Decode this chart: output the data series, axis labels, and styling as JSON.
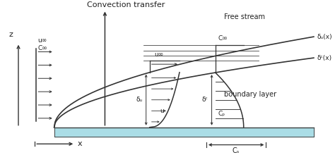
{
  "bg_color": "#ffffff",
  "plate_color": "#aadde6",
  "plate_edge_color": "#444444",
  "curve_color": "#333333",
  "arrow_color": "#333333",
  "text_color": "#222222",
  "title": "Convection transfer",
  "free_stream_label": "Free stream",
  "boundary_layer_label": "boundary layer",
  "delta_u_label": "δᵤ(x)",
  "delta_c_label": "δᶜ(x)",
  "u_inf_label": "u∞",
  "C_inf_label": "C∞",
  "delta_u_sym": "δᵤ",
  "delta_c_sym": "δᶜ",
  "u_sym": "u",
  "Cp_sym": "Cₚ",
  "z_label": "z",
  "x_label": "x",
  "Cs_label": "Cₛ",
  "figsize": [
    4.74,
    2.2
  ],
  "dpi": 100,
  "xlim": [
    0,
    11
  ],
  "ylim": [
    -0.8,
    4.2
  ]
}
